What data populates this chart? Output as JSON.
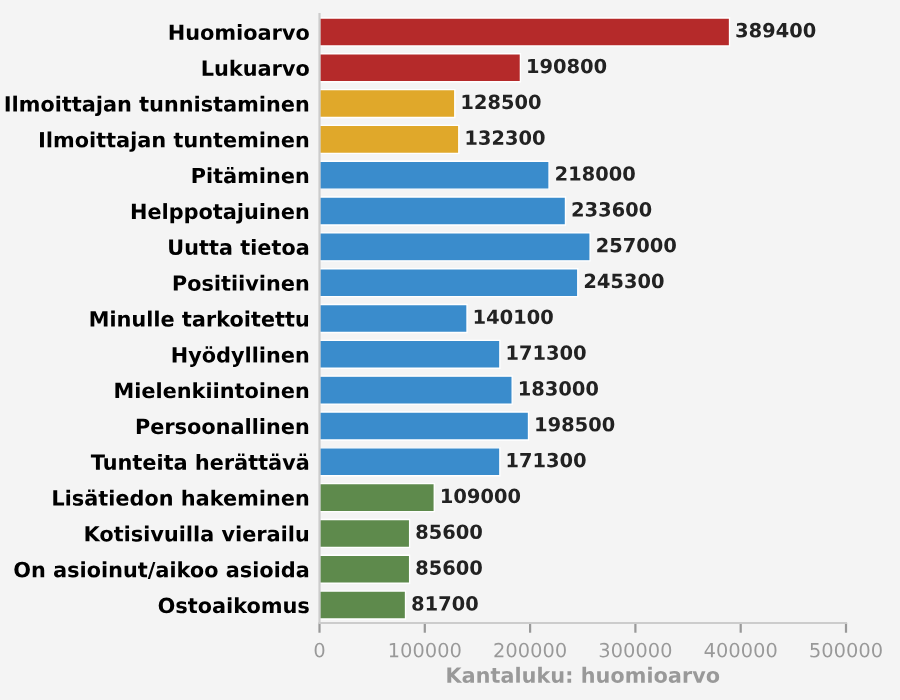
{
  "chart_data": {
    "type": "bar",
    "orientation": "horizontal",
    "xlabel": "Kantaluku: huomioarvo",
    "categories": [
      "Huomioarvo",
      "Lukuarvo",
      "Ilmoittajan tunnistaminen",
      "Ilmoittajan tunteminen",
      "Pitäminen",
      "Helppotajuinen",
      "Uutta tietoa",
      "Positiivinen",
      "Minulle tarkoitettu",
      "Hyödyllinen",
      "Mielenkiintoinen",
      "Persoonallinen",
      "Tunteita herättävä",
      "Lisätiedon hakeminen",
      "Kotisivuilla vierailu",
      "On asioinut/aikoo asioida",
      "Ostoaikomus"
    ],
    "values": [
      389400,
      190800,
      128500,
      132300,
      218000,
      233600,
      257000,
      245300,
      140100,
      171300,
      183000,
      198500,
      171300,
      109000,
      85600,
      85600,
      81700
    ],
    "colors": [
      "#b52a2a",
      "#b52a2a",
      "#e0a82a",
      "#e0a82a",
      "#3a8ccc",
      "#3a8ccc",
      "#3a8ccc",
      "#3a8ccc",
      "#3a8ccc",
      "#3a8ccc",
      "#3a8ccc",
      "#3a8ccc",
      "#3a8ccc",
      "#5e8a4c",
      "#5e8a4c",
      "#5e8a4c",
      "#5e8a4c"
    ],
    "xlim": [
      0,
      500000
    ],
    "xticks": [
      0,
      100000,
      200000,
      300000,
      400000,
      500000
    ],
    "data_labels": true,
    "grid": false,
    "legend": false
  }
}
